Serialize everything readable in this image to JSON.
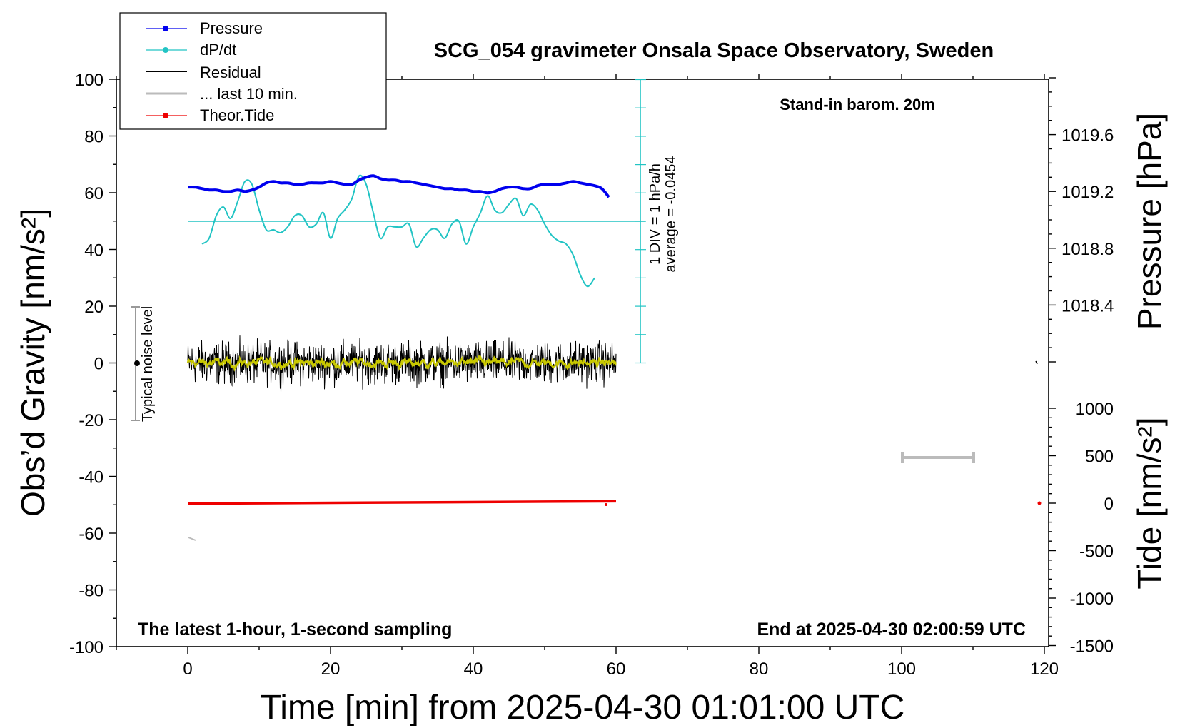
{
  "chart_data": {
    "type": "line",
    "title": "SCG_054 gravimeter Onsala Space Observatory, Sweden",
    "xlabel": "Time [min] from 2025-04-30 01:01:00 UTC",
    "ylabel_left": "Obs’d Gravity [nm/s²]",
    "ylabel_right_top": "Pressure [hPa]",
    "ylabel_right_bottom": "Tide [nm/s²]",
    "xlim": [
      -10,
      120
    ],
    "ylim": [
      -100,
      100
    ],
    "pressure_range": [
      1018.0,
      1020.0
    ],
    "tide_range": [
      -1500,
      1500
    ],
    "x_ticks": [
      "0",
      "20",
      "40",
      "60",
      "80",
      "100",
      "120"
    ],
    "y_ticks": [
      "100",
      "80",
      "60",
      "40",
      "20",
      "0",
      "-20",
      "-40",
      "-60",
      "-80",
      "-100"
    ],
    "pressure_ticks": [
      "1019.6",
      "1019.2",
      "1018.8",
      "1018.4"
    ],
    "tide_ticks": [
      "1000",
      "500",
      "0",
      "-500",
      "-1000",
      "-1500"
    ],
    "annotations": {
      "stand_in": "Stand-in barom. 20m",
      "bottom_left": "The latest 1-hour, 1-second sampling",
      "bottom_right": "End at 2025-04-30 02:00:59 UTC",
      "noise": "Typical noise level",
      "div_label": "1 DIV = 1 hPa/h",
      "average_label": "average = -0.0454"
    },
    "legend": [
      "Pressure",
      "dP/dt",
      "Residual",
      "... last 10 min.",
      "Theor.Tide"
    ],
    "colors": {
      "pressure": "#0000ee",
      "dpdt": "#22c4c4",
      "residual": "#000000",
      "residual_smooth": "#c8c800",
      "last10": "#bbbbbb",
      "tide": "#ee0000"
    },
    "series": [
      {
        "name": "Pressure",
        "unit": "hPa",
        "x": [
          0,
          1,
          2,
          3,
          4,
          5,
          6,
          7,
          8,
          9,
          10,
          11,
          12,
          13,
          14,
          15,
          16,
          17,
          18,
          19,
          20,
          21,
          22,
          23,
          24,
          25,
          26,
          27,
          28,
          29,
          30,
          31,
          32,
          33,
          34,
          35,
          36,
          37,
          38,
          39,
          40,
          41,
          42,
          43,
          44,
          45,
          46,
          47,
          48,
          49,
          50,
          51,
          52,
          53,
          54,
          55,
          56,
          57,
          58,
          59
        ],
        "values": [
          1019.23,
          1019.23,
          1019.22,
          1019.21,
          1019.21,
          1019.2,
          1019.2,
          1019.21,
          1019.2,
          1019.21,
          1019.23,
          1019.26,
          1019.27,
          1019.26,
          1019.26,
          1019.25,
          1019.25,
          1019.26,
          1019.26,
          1019.26,
          1019.27,
          1019.26,
          1019.25,
          1019.25,
          1019.28,
          1019.3,
          1019.31,
          1019.29,
          1019.28,
          1019.28,
          1019.27,
          1019.27,
          1019.26,
          1019.25,
          1019.24,
          1019.23,
          1019.22,
          1019.22,
          1019.21,
          1019.21,
          1019.2,
          1019.2,
          1019.19,
          1019.2,
          1019.22,
          1019.23,
          1019.23,
          1019.22,
          1019.22,
          1019.24,
          1019.25,
          1019.25,
          1019.25,
          1019.26,
          1019.27,
          1019.26,
          1019.25,
          1019.24,
          1019.22,
          1019.16
        ]
      },
      {
        "name": "dP/dt",
        "unit": "hPa/h",
        "x": [
          2,
          3,
          4,
          5,
          6,
          7,
          8,
          9,
          10,
          11,
          12,
          13,
          14,
          15,
          16,
          17,
          18,
          19,
          20,
          21,
          22,
          23,
          24,
          25,
          26,
          27,
          28,
          29,
          30,
          31,
          32,
          33,
          34,
          35,
          36,
          37,
          38,
          39,
          40,
          41,
          42,
          43,
          44,
          45,
          46,
          47,
          48,
          49,
          50,
          51,
          52,
          53,
          54,
          55,
          56,
          57
        ],
        "values": [
          -0.8,
          -0.6,
          0.2,
          0.5,
          0.1,
          0.7,
          1.4,
          1.3,
          0.4,
          -0.3,
          -0.3,
          -0.4,
          -0.2,
          0.2,
          0.2,
          -0.2,
          -0.1,
          0.3,
          -0.6,
          0.1,
          0.4,
          0.8,
          1.6,
          1.3,
          0.3,
          -0.6,
          -0.2,
          -0.2,
          -0.2,
          -0.1,
          -0.9,
          -0.6,
          -0.3,
          -0.3,
          -0.6,
          -0.1,
          0.0,
          -0.8,
          -0.2,
          0.3,
          0.9,
          0.4,
          0.3,
          0.6,
          0.8,
          0.2,
          0.6,
          0.4,
          -0.1,
          -0.5,
          -0.7,
          -0.8,
          -1.2,
          -1.9,
          -2.3,
          -2.0
        ]
      },
      {
        "name": "Residual",
        "unit": "nm/s²",
        "x_range": [
          0,
          60
        ],
        "amplitude": 4.5,
        "smoothed_amplitude": 1.5
      },
      {
        "name": "Theor.Tide",
        "unit": "nm/s²",
        "x": [
          0,
          60
        ],
        "values": [
          -5,
          20
        ]
      }
    ],
    "typical_noise_level": [
      -20,
      20
    ],
    "average_dpdt": -0.0454
  }
}
